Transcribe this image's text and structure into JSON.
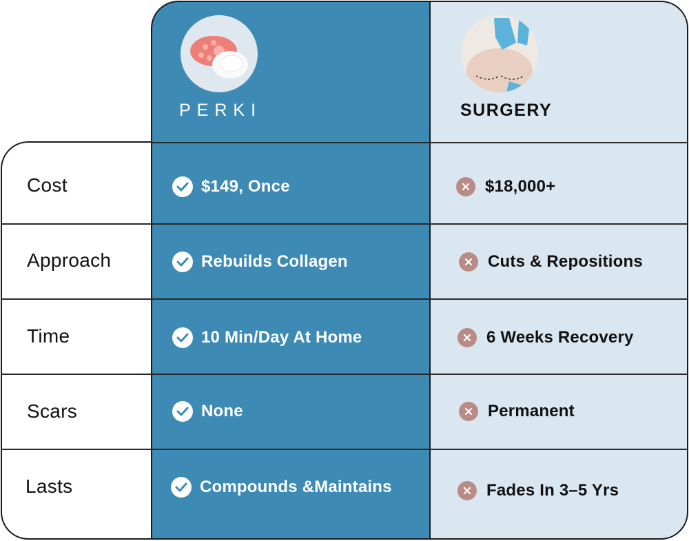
{
  "header": {
    "perki_title": "PERKI",
    "surgery_title": "SURGERY"
  },
  "rows": [
    {
      "label": "Cost",
      "perki": "$149, Once",
      "surgery": "$18,000+"
    },
    {
      "label": "Approach",
      "perki": "Rebuilds Collagen",
      "surgery": "Cuts & Repositions"
    },
    {
      "label": "Time",
      "perki": "10 Min/Day At Home",
      "surgery": "6 Weeks Recovery"
    },
    {
      "label": "Scars",
      "perki": "None",
      "surgery": "Permanent"
    },
    {
      "label": "Lasts",
      "perki": "Compounds &Maintains",
      "surgery": "Fades In 3–5 Yrs"
    }
  ],
  "icons": {
    "perki": "check-circle-icon",
    "surgery": "x-circle-icon"
  },
  "colors": {
    "perki_bg": "#3d8ab5",
    "surgery_bg": "#dae6f0",
    "x_icon": "#b98b86"
  }
}
